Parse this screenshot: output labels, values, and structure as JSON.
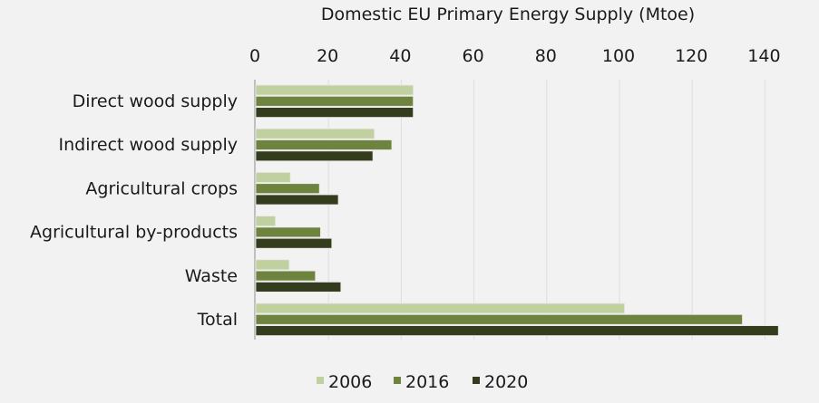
{
  "chart_data": {
    "type": "bar",
    "orientation": "horizontal",
    "title": "Domestic EU Primary Energy Supply (Mtoe)",
    "xlabel": "Domestic EU Primary Energy Supply (Mtoe)",
    "ylabel": "",
    "xlim": [
      0,
      145
    ],
    "x_ticks": [
      0,
      20,
      40,
      60,
      80,
      100,
      120,
      140
    ],
    "x_tick_labels": [
      "0",
      "20",
      "40",
      "60",
      "80",
      "100",
      "120",
      "140"
    ],
    "x_axis_position": "top",
    "grid": true,
    "legend_position": "bottom-center",
    "categories": [
      "Direct wood supply",
      "Indirect wood supply",
      "Agricultural crops",
      "Agricultural by-products",
      "Waste",
      "Total"
    ],
    "series": [
      {
        "name": "2006",
        "color": "#c0d09e",
        "values": [
          43.3,
          32.6,
          9.5,
          5.4,
          9.2,
          101.4
        ]
      },
      {
        "name": "2016",
        "color": "#6e843e",
        "values": [
          43.3,
          37.4,
          17.5,
          17.8,
          16.4,
          133.8
        ]
      },
      {
        "name": "2020",
        "color": "#333d1e",
        "values": [
          43.3,
          32.2,
          22.7,
          20.9,
          23.4,
          143.7
        ]
      }
    ]
  }
}
